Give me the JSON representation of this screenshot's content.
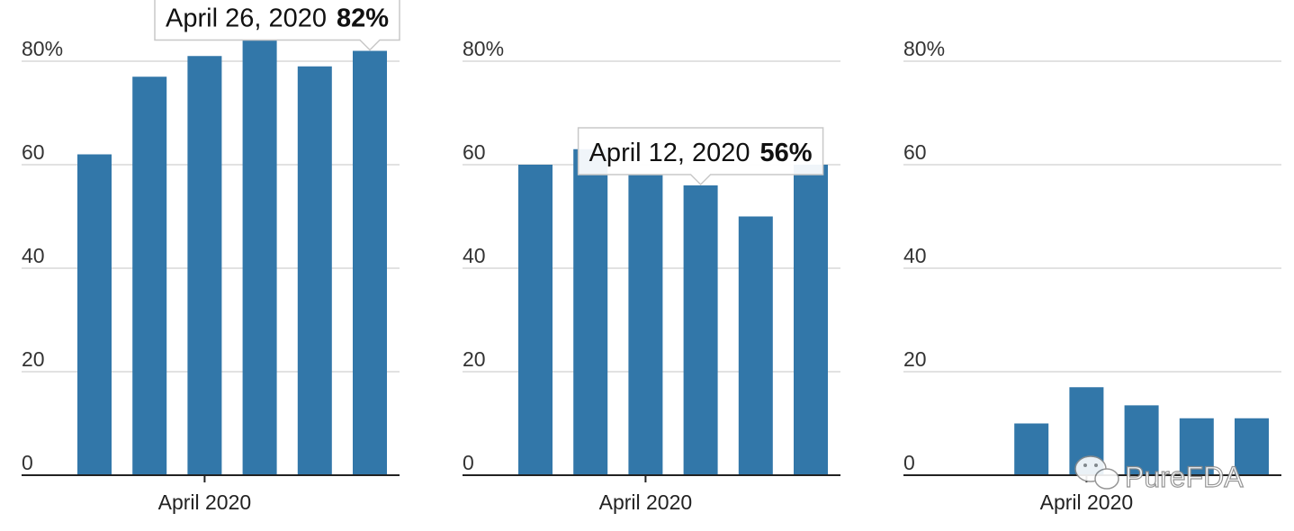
{
  "chart_data": [
    {
      "type": "bar",
      "categories": [
        "",
        "",
        "",
        "",
        "",
        ""
      ],
      "values": [
        62,
        77,
        81,
        84,
        79,
        82
      ],
      "ylim": [
        0,
        84
      ],
      "yticks": [
        0,
        20,
        40,
        60,
        80
      ],
      "ytick_labels": [
        "0",
        "20",
        "40",
        "60",
        "80%"
      ],
      "xlabel": "April 2020",
      "tooltip": {
        "date": "April 26, 2020",
        "value": "82%",
        "bar_index": 5
      },
      "grid": true,
      "color": "#3277a9"
    },
    {
      "type": "bar",
      "categories": [
        "",
        "",
        "",
        "",
        "",
        ""
      ],
      "values": [
        60,
        63,
        58,
        56,
        50,
        60
      ],
      "ylim": [
        0,
        84
      ],
      "yticks": [
        0,
        20,
        40,
        60,
        80
      ],
      "ytick_labels": [
        "0",
        "20",
        "40",
        "60",
        "80%"
      ],
      "xlabel": "April 2020",
      "tooltip": {
        "date": "April 12, 2020",
        "value": "56%",
        "bar_index": 3
      },
      "grid": true,
      "color": "#3277a9"
    },
    {
      "type": "bar",
      "categories": [
        "",
        "",
        "",
        "",
        "",
        ""
      ],
      "values": [
        0,
        10,
        17,
        13.5,
        11,
        11
      ],
      "ylim": [
        0,
        84
      ],
      "yticks": [
        0,
        20,
        40,
        60,
        80
      ],
      "ytick_labels": [
        "0",
        "20",
        "40",
        "60",
        "80%"
      ],
      "xlabel": "April 2020",
      "grid": true,
      "color": "#3277a9"
    }
  ],
  "watermark": {
    "text": "PureFDA",
    "icon": "wechat-icon"
  }
}
